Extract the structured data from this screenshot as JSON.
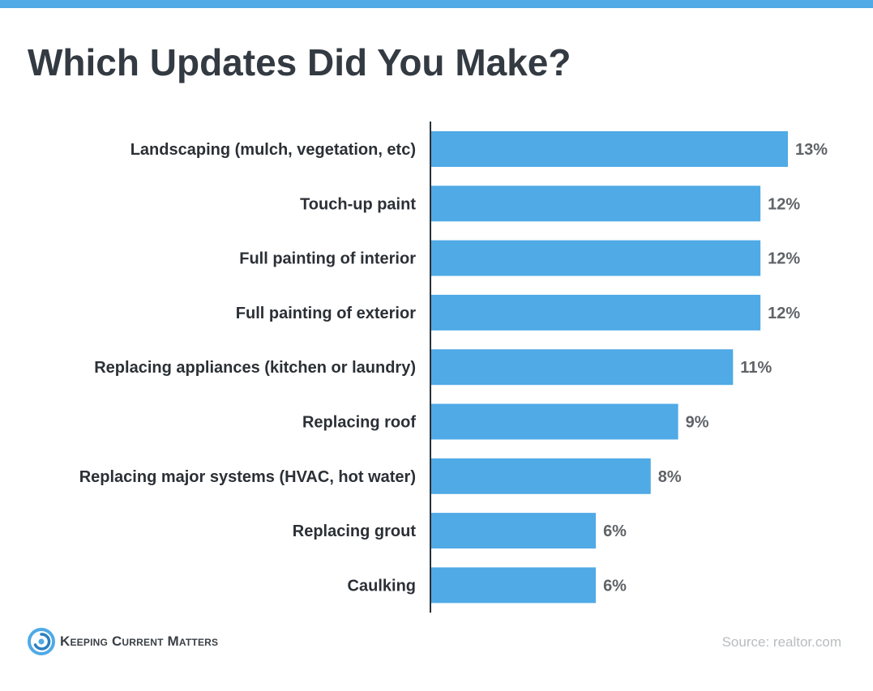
{
  "title": "Which Updates Did You Make?",
  "colors": {
    "accent": "#4faae6",
    "title_text": "#333a42",
    "value_text": "#5f6368",
    "source_text": "#b9bcc0"
  },
  "chart_data": {
    "type": "bar",
    "orientation": "horizontal",
    "categories": [
      "Landscaping (mulch, vegetation, etc)",
      "Touch-up paint",
      "Full painting of interior",
      "Full painting of exterior",
      "Replacing appliances (kitchen or laundry)",
      "Replacing roof",
      "Replacing major systems (HVAC, hot water)",
      "Replacing grout",
      "Caulking"
    ],
    "values": [
      13,
      12,
      12,
      12,
      11,
      9,
      8,
      6,
      6
    ],
    "value_labels": [
      "13%",
      "12%",
      "12%",
      "12%",
      "11%",
      "9%",
      "8%",
      "6%",
      "6%"
    ],
    "unit": "%",
    "xlim": [
      0,
      13
    ],
    "grid": false,
    "legend": "none",
    "bar_color": "#4faae6"
  },
  "branding": {
    "logo_text": "Keeping Current Matters",
    "logo_icon": "swirl-logo-icon"
  },
  "source": "Source: realtor.com"
}
